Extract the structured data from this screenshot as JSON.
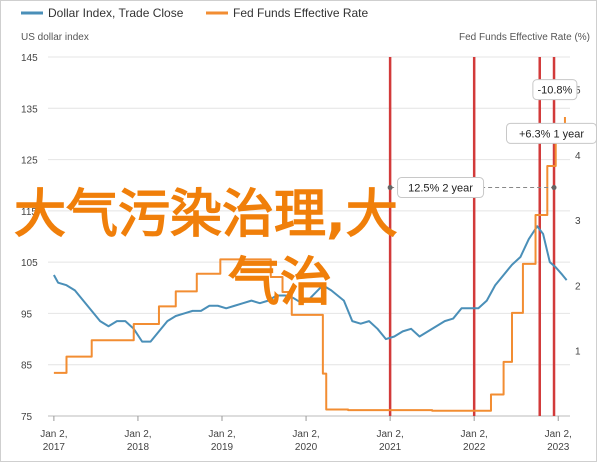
{
  "legend": [
    {
      "label": "Dollar Index, Trade Close",
      "color": "#4a8fb8"
    },
    {
      "label": "Fed Funds Effective Rate",
      "color": "#f28d32"
    }
  ],
  "axes": {
    "left_title": "US dollar index",
    "right_title": "Fed Funds Effective Rate (%)"
  },
  "badges": [
    {
      "label": "-10.8%",
      "date": 2022.96,
      "value": 5.0
    },
    {
      "label": "+6.3% 1 year",
      "date": 2022.92,
      "value": 4.33
    },
    {
      "label": "12.5% 2 year",
      "date": 2021.6,
      "value": 3.5
    }
  ],
  "overlay": {
    "line1": "大气污染治理,大",
    "line2": "气治"
  },
  "chart_data": {
    "type": "line",
    "x_axis": {
      "label": "",
      "range": [
        "2017-01-01",
        "2023-02-15"
      ],
      "ticks": [
        {
          "date": 2017.0,
          "label1": "Jan 2,",
          "label2": "2017"
        },
        {
          "date": 2018.0,
          "label1": "Jan 2,",
          "label2": "2018"
        },
        {
          "date": 2019.0,
          "label1": "Jan 2,",
          "label2": "2019"
        },
        {
          "date": 2020.0,
          "label1": "Jan 2,",
          "label2": "2020"
        },
        {
          "date": 2021.0,
          "label1": "Jan 2,",
          "label2": "2021"
        },
        {
          "date": 2022.0,
          "label1": "Jan 2,",
          "label2": "2022"
        },
        {
          "date": 2023.0,
          "label1": "Jan 2,",
          "label2": "2023"
        }
      ]
    },
    "y_left": {
      "label": "US dollar index",
      "range": [
        75,
        145
      ],
      "ticks": [
        75,
        85,
        95,
        105,
        115,
        125,
        135,
        145
      ]
    },
    "y_right": {
      "label": "Fed Funds Effective Rate (%)",
      "range": [
        0,
        5.5
      ],
      "ticks": [
        1,
        2,
        3,
        4,
        5
      ]
    },
    "grid": true,
    "legend_position": "top-left",
    "vertical_markers": [
      2021.0,
      2022.0,
      2022.78,
      2022.95
    ],
    "series": [
      {
        "name": "Dollar Index, Trade Close",
        "axis": "left",
        "color": "#4a8fb8",
        "points": [
          [
            2017.0,
            102.5
          ],
          [
            2017.05,
            101.0
          ],
          [
            2017.15,
            100.5
          ],
          [
            2017.25,
            99.5
          ],
          [
            2017.35,
            97.5
          ],
          [
            2017.45,
            95.5
          ],
          [
            2017.55,
            93.5
          ],
          [
            2017.65,
            92.5
          ],
          [
            2017.75,
            93.5
          ],
          [
            2017.85,
            93.5
          ],
          [
            2017.95,
            92.0
          ],
          [
            2018.05,
            89.5
          ],
          [
            2018.15,
            89.5
          ],
          [
            2018.25,
            91.5
          ],
          [
            2018.35,
            93.5
          ],
          [
            2018.45,
            94.5
          ],
          [
            2018.55,
            95.0
          ],
          [
            2018.65,
            95.5
          ],
          [
            2018.75,
            95.5
          ],
          [
            2018.85,
            96.5
          ],
          [
            2018.95,
            96.5
          ],
          [
            2019.05,
            96.0
          ],
          [
            2019.15,
            96.5
          ],
          [
            2019.25,
            97.0
          ],
          [
            2019.35,
            97.5
          ],
          [
            2019.45,
            97.0
          ],
          [
            2019.55,
            97.5
          ],
          [
            2019.65,
            98.5
          ],
          [
            2019.75,
            98.5
          ],
          [
            2019.85,
            98.0
          ],
          [
            2019.95,
            97.0
          ],
          [
            2020.05,
            98.0
          ],
          [
            2020.2,
            100.5
          ],
          [
            2020.3,
            99.5
          ],
          [
            2020.45,
            97.5
          ],
          [
            2020.55,
            93.5
          ],
          [
            2020.65,
            93.0
          ],
          [
            2020.75,
            93.5
          ],
          [
            2020.85,
            92.0
          ],
          [
            2020.95,
            90.0
          ],
          [
            2021.05,
            90.5
          ],
          [
            2021.15,
            91.5
          ],
          [
            2021.25,
            92.0
          ],
          [
            2021.35,
            90.5
          ],
          [
            2021.45,
            91.5
          ],
          [
            2021.55,
            92.5
          ],
          [
            2021.65,
            93.5
          ],
          [
            2021.75,
            94.0
          ],
          [
            2021.85,
            96.0
          ],
          [
            2021.95,
            96.0
          ],
          [
            2022.05,
            96.0
          ],
          [
            2022.15,
            97.5
          ],
          [
            2022.25,
            100.5
          ],
          [
            2022.35,
            102.5
          ],
          [
            2022.45,
            104.5
          ],
          [
            2022.55,
            106.0
          ],
          [
            2022.65,
            109.5
          ],
          [
            2022.75,
            112.0
          ],
          [
            2022.82,
            110.5
          ],
          [
            2022.9,
            105.0
          ],
          [
            2022.97,
            104.0
          ],
          [
            2023.05,
            102.5
          ],
          [
            2023.1,
            101.5
          ]
        ]
      },
      {
        "name": "Fed Funds Effective Rate",
        "axis": "right",
        "color": "#f28d32",
        "points": [
          [
            2017.0,
            0.66
          ],
          [
            2017.15,
            0.91
          ],
          [
            2017.45,
            1.16
          ],
          [
            2017.95,
            1.41
          ],
          [
            2018.25,
            1.68
          ],
          [
            2018.45,
            1.91
          ],
          [
            2018.7,
            2.18
          ],
          [
            2018.98,
            2.4
          ],
          [
            2019.58,
            2.13
          ],
          [
            2019.72,
            1.9
          ],
          [
            2019.83,
            1.55
          ],
          [
            2020.17,
            1.55
          ],
          [
            2020.2,
            0.65
          ],
          [
            2020.24,
            0.1
          ],
          [
            2020.5,
            0.09
          ],
          [
            2020.9,
            0.09
          ],
          [
            2021.5,
            0.08
          ],
          [
            2022.0,
            0.08
          ],
          [
            2022.2,
            0.33
          ],
          [
            2022.35,
            0.83
          ],
          [
            2022.45,
            1.58
          ],
          [
            2022.58,
            2.33
          ],
          [
            2022.73,
            3.08
          ],
          [
            2022.87,
            3.83
          ],
          [
            2022.97,
            4.33
          ],
          [
            2023.08,
            4.58
          ]
        ]
      }
    ]
  }
}
